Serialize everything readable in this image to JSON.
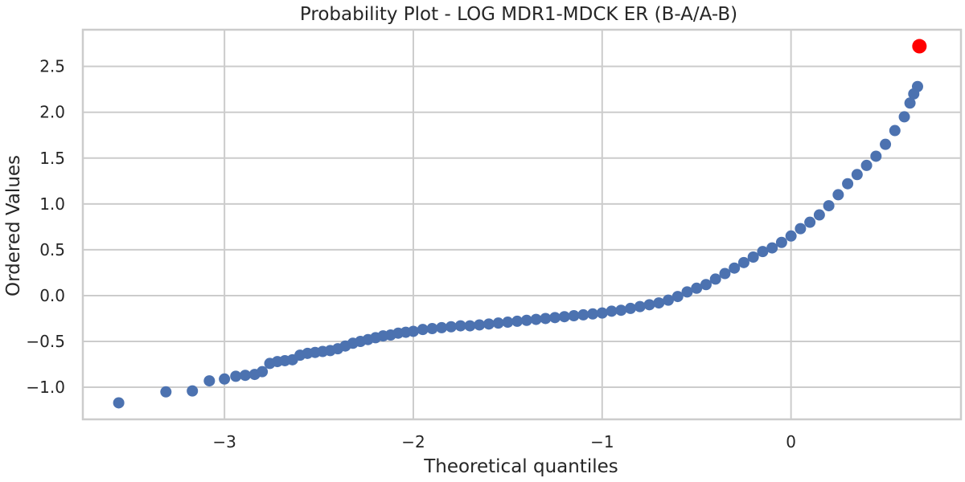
{
  "chart_data": {
    "type": "scatter",
    "title": "Probability Plot - LOG MDR1-MDCK ER (B-A/A-B)",
    "xlabel": "Theoretical quantiles",
    "ylabel": "Ordered Values",
    "xlim": [
      -3.75,
      0.9
    ],
    "ylim": [
      -1.35,
      2.9
    ],
    "grid": true,
    "xticks": [
      -3,
      -2,
      -1,
      0
    ],
    "xtick_labels": [
      "−3",
      "−2",
      "−1",
      "0"
    ],
    "yticks": [
      -1.0,
      -0.5,
      0.0,
      0.5,
      1.0,
      1.5,
      2.0,
      2.5
    ],
    "ytick_labels": [
      "−1.0",
      "−0.5",
      "0.0",
      "0.5",
      "1.0",
      "1.5",
      "2.0",
      "2.5"
    ],
    "series": [
      {
        "color": "#4c72b0",
        "x": [
          -3.56,
          -3.31,
          -3.17,
          -3.08,
          -3.0,
          -2.94,
          -2.89,
          -2.84,
          -2.8,
          -2.76,
          -2.72,
          -2.68,
          -2.64,
          -2.6,
          -2.56,
          -2.52,
          -2.48,
          -2.44,
          -2.4,
          -2.36,
          -2.32,
          -2.28,
          -2.24,
          -2.2,
          -2.16,
          -2.12,
          -2.08,
          -2.04,
          -2.0,
          -1.95,
          -1.9,
          -1.85,
          -1.8,
          -1.75,
          -1.7,
          -1.65,
          -1.6,
          -1.55,
          -1.5,
          -1.45,
          -1.4,
          -1.35,
          -1.3,
          -1.25,
          -1.2,
          -1.15,
          -1.1,
          -1.05,
          -1.0,
          -0.95,
          -0.9,
          -0.85,
          -0.8,
          -0.75,
          -0.7,
          -0.65,
          -0.6,
          -0.55,
          -0.5,
          -0.45,
          -0.4,
          -0.35,
          -0.3,
          -0.25,
          -0.2,
          -0.15,
          -0.1,
          -0.05,
          0.0,
          0.05,
          0.1,
          0.15,
          0.2,
          0.25,
          0.3,
          0.35,
          0.4,
          0.45,
          0.5,
          0.55,
          0.6,
          0.63,
          0.65,
          0.67
        ],
        "y": [
          -1.17,
          -1.05,
          -1.04,
          -0.93,
          -0.91,
          -0.88,
          -0.87,
          -0.86,
          -0.83,
          -0.74,
          -0.72,
          -0.71,
          -0.7,
          -0.65,
          -0.63,
          -0.62,
          -0.61,
          -0.6,
          -0.58,
          -0.55,
          -0.52,
          -0.5,
          -0.48,
          -0.46,
          -0.44,
          -0.43,
          -0.41,
          -0.4,
          -0.39,
          -0.37,
          -0.36,
          -0.35,
          -0.34,
          -0.33,
          -0.33,
          -0.32,
          -0.31,
          -0.3,
          -0.29,
          -0.28,
          -0.27,
          -0.26,
          -0.25,
          -0.24,
          -0.23,
          -0.22,
          -0.21,
          -0.2,
          -0.19,
          -0.17,
          -0.16,
          -0.14,
          -0.12,
          -0.1,
          -0.08,
          -0.05,
          -0.01,
          0.04,
          0.08,
          0.12,
          0.18,
          0.24,
          0.3,
          0.36,
          0.42,
          0.48,
          0.52,
          0.58,
          0.65,
          0.73,
          0.8,
          0.88,
          0.98,
          1.1,
          1.22,
          1.32,
          1.42,
          1.52,
          1.65,
          1.8,
          1.95,
          2.1,
          2.2,
          2.28
        ]
      },
      {
        "color": "#ff0000",
        "x": [
          0.68
        ],
        "y": [
          2.72
        ]
      }
    ]
  }
}
